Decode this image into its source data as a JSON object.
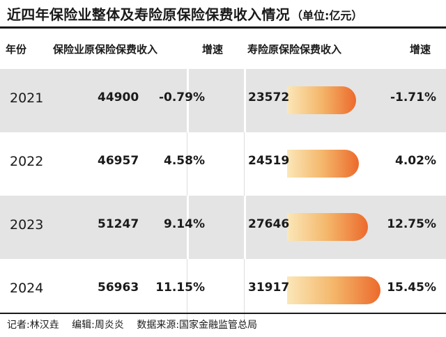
{
  "title": "近四年保险业整体及寿险原保险保费收入情况",
  "unit": "（单位:亿元）",
  "headers": {
    "year": "年份",
    "total": "保险业原保险保费收入",
    "total_growth": "增速",
    "life": "寿险原保险保费收入",
    "life_growth": "增速"
  },
  "chart_data": {
    "type": "table",
    "title": "近四年保险业整体及寿险原保险保费收入情况",
    "unit": "（单位:亿元）",
    "columns": [
      "年份",
      "保险业原保险保费收入",
      "增速",
      "寿险原保险保费收入",
      "增速"
    ],
    "rows": [
      {
        "year": "2021",
        "total": "44900",
        "total_growth": "-0.79%",
        "life": "23572",
        "life_value": 23572,
        "life_growth": "-1.71%"
      },
      {
        "year": "2022",
        "total": "46957",
        "total_growth": "4.58%",
        "life": "24519",
        "life_value": 24519,
        "life_growth": "4.02%"
      },
      {
        "year": "2023",
        "total": "51247",
        "total_growth": "9.14%",
        "life": "27646",
        "life_value": 27646,
        "life_growth": "12.75%"
      },
      {
        "year": "2024",
        "total": "56963",
        "total_growth": "11.15%",
        "life": "31917",
        "life_value": 31917,
        "life_growth": "15.45%"
      }
    ]
  },
  "footer": {
    "reporter": "记者:林汉垚",
    "editor": "编辑:周炎炎",
    "source": "数据来源:国家金融监管总局"
  },
  "colors": {
    "bar_start": "#fbe7b8",
    "bar_end": "#ec6a2c",
    "row_shade": "#e4e4e4"
  }
}
